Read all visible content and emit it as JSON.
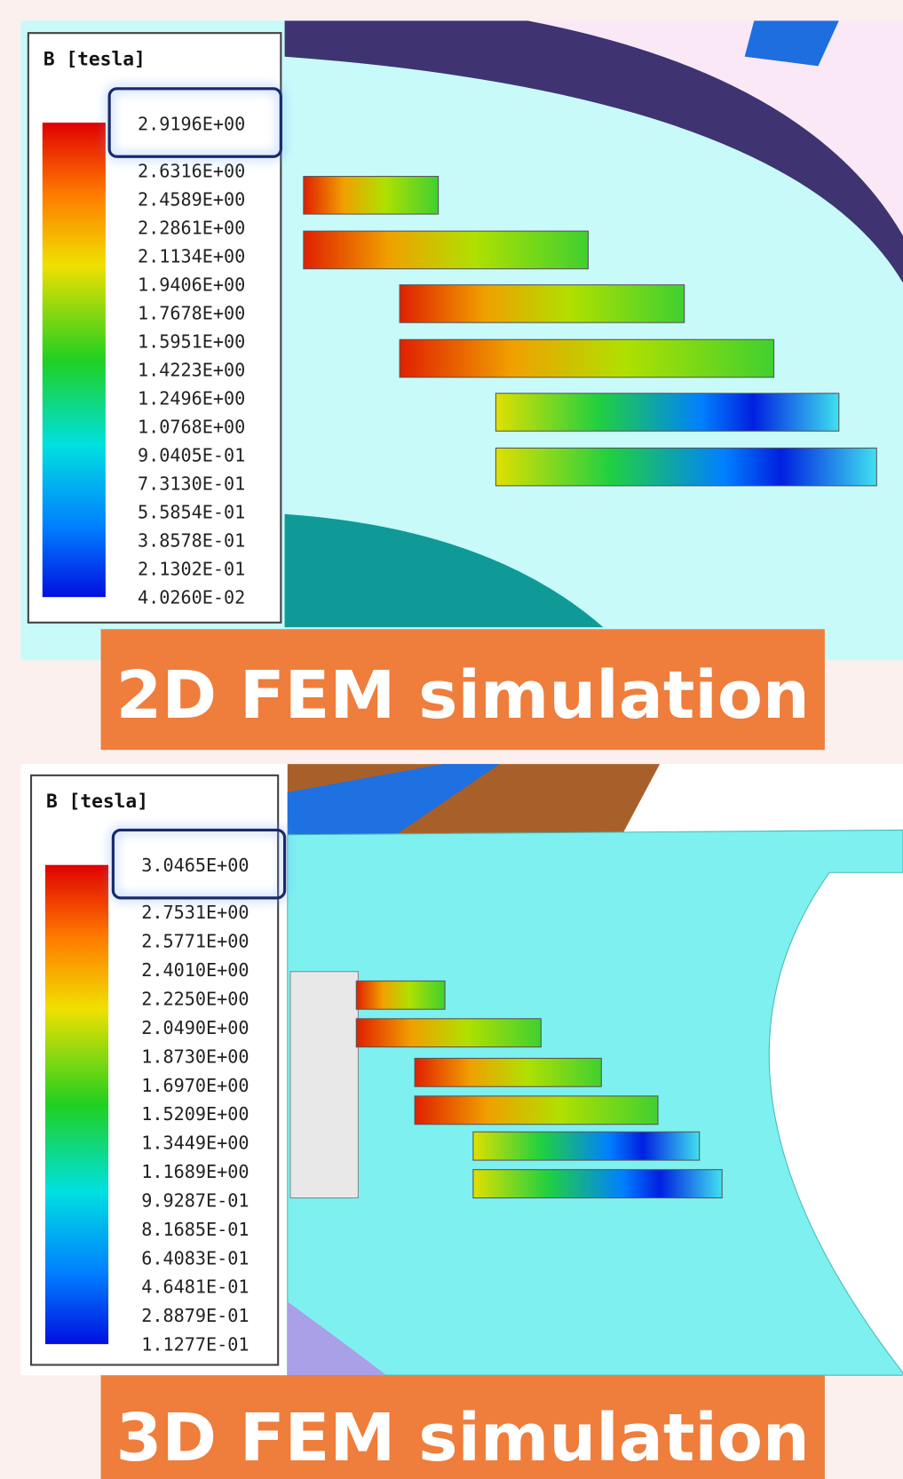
{
  "panels": [
    {
      "legend_title": "B [tesla]",
      "labels": [
        "2.9196E+00",
        "2.6316E+00",
        "2.4589E+00",
        "2.2861E+00",
        "2.1134E+00",
        "1.9406E+00",
        "1.7678E+00",
        "1.5951E+00",
        "1.4223E+00",
        "1.2496E+00",
        "1.0768E+00",
        "9.0405E-01",
        "7.3130E-01",
        "5.5854E-01",
        "3.8578E-01",
        "2.1302E-01",
        "4.0260E-02"
      ],
      "caption": "2D FEM simulation"
    },
    {
      "legend_title": "B [tesla]",
      "labels": [
        "3.0465E+00",
        "2.7531E+00",
        "2.5771E+00",
        "2.4010E+00",
        "2.2250E+00",
        "2.0490E+00",
        "1.8730E+00",
        "1.6970E+00",
        "1.5209E+00",
        "1.3449E+00",
        "1.1689E+00",
        "9.9287E-01",
        "8.1685E-01",
        "6.4083E-01",
        "4.6481E-01",
        "2.8879E-01",
        "1.1277E-01"
      ],
      "caption": "3D FEM simulation"
    }
  ]
}
